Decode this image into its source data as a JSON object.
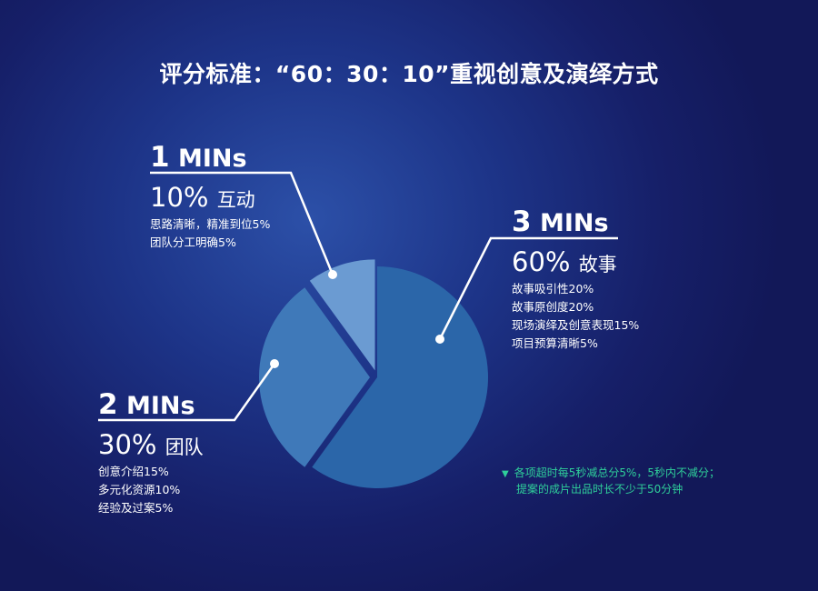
{
  "title": "评分标准：“60：30：10”重视创意及演绎方式",
  "chart_data": {
    "type": "pie",
    "title": "",
    "colors": [
      "#2b66a9",
      "#3f79b9",
      "#6b9bd2"
    ],
    "slices": [
      {
        "value": 60,
        "minutes_num": "3",
        "minutes_unit": "MINs",
        "percent": "60%",
        "category": "故事",
        "items": [
          "故事吸引性20%",
          "故事原创度20%",
          "现场演绎及创意表现15%",
          "项目预算清晰5%"
        ]
      },
      {
        "value": 30,
        "minutes_num": "2",
        "minutes_unit": "MINs",
        "percent": "30%",
        "category": "团队",
        "items": [
          "创意介绍15%",
          "多元化资源10%",
          "经验及过案5%"
        ]
      },
      {
        "value": 10,
        "minutes_num": "1",
        "minutes_unit": "MINs",
        "percent": "10%",
        "category": "互动",
        "items": [
          "思路清晰，精准到位5%",
          "团队分工明确5%"
        ]
      }
    ]
  },
  "note": {
    "icon": "triangle-down-icon",
    "color": "#2fcf9a",
    "lines": [
      "各项超时每5秒减总分5%，5秒内不减分；",
      "提案的成片出品时长不少于50分钟"
    ]
  }
}
